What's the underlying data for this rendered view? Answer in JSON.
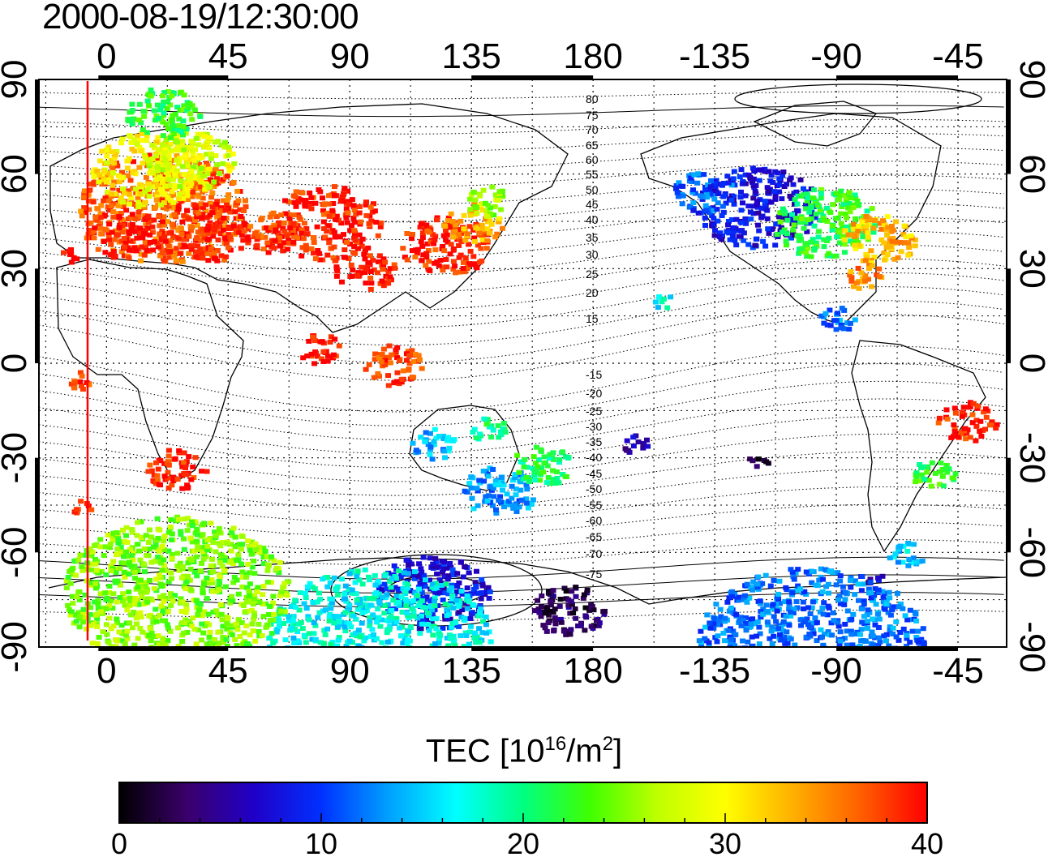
{
  "title": "2000-08-19/12:30:00",
  "map": {
    "top_lon_ticks": [
      "0",
      "45",
      "90",
      "135",
      "180",
      "-135",
      "-90",
      "-45"
    ],
    "bottom_lon_ticks": [
      "0",
      "45",
      "90",
      "135",
      "180",
      "-135",
      "-90",
      "-45"
    ],
    "left_lat_ticks": [
      "90",
      "60",
      "30",
      "0",
      "-30",
      "-60",
      "-90"
    ],
    "right_lat_ticks": [
      "90",
      "60",
      "30",
      "0",
      "-30",
      "-60",
      "-90"
    ],
    "lon_tick_values": [
      0,
      45,
      90,
      135,
      180,
      225,
      270,
      315
    ],
    "lat_tick_values": [
      90,
      60,
      30,
      0,
      -30,
      -60,
      -90
    ],
    "lon_range": [
      -25,
      333
    ],
    "lat_range": [
      -90,
      90
    ],
    "magnetic_lat_labels_north": [
      "80",
      "75",
      "70",
      "65",
      "60",
      "55",
      "50",
      "45",
      "40",
      "35",
      "30",
      "25",
      "20",
      "15"
    ],
    "magnetic_lat_labels_south": [
      "-15",
      "-20",
      "-25",
      "-30",
      "-35",
      "-40",
      "-45",
      "-50",
      "-55",
      "-60",
      "-65",
      "-70",
      "-75"
    ],
    "terminator_lon": -7,
    "terminator_color": "#ff0000"
  },
  "colorbar": {
    "label_text": "TEC  [10",
    "label_exp": "16",
    "label_mid": "/m",
    "label_exp2": "2",
    "label_end": "]",
    "ticks": [
      "0",
      "10",
      "20",
      "30",
      "40"
    ],
    "tick_values": [
      0,
      10,
      20,
      30,
      40
    ],
    "range": [
      0,
      40
    ],
    "colors": [
      "#000000",
      "#3a006a",
      "#2000c8",
      "#0030ff",
      "#00a0ff",
      "#00ffff",
      "#00ff80",
      "#40ff00",
      "#c0ff00",
      "#ffff00",
      "#ffb000",
      "#ff6000",
      "#ff0000"
    ]
  }
}
